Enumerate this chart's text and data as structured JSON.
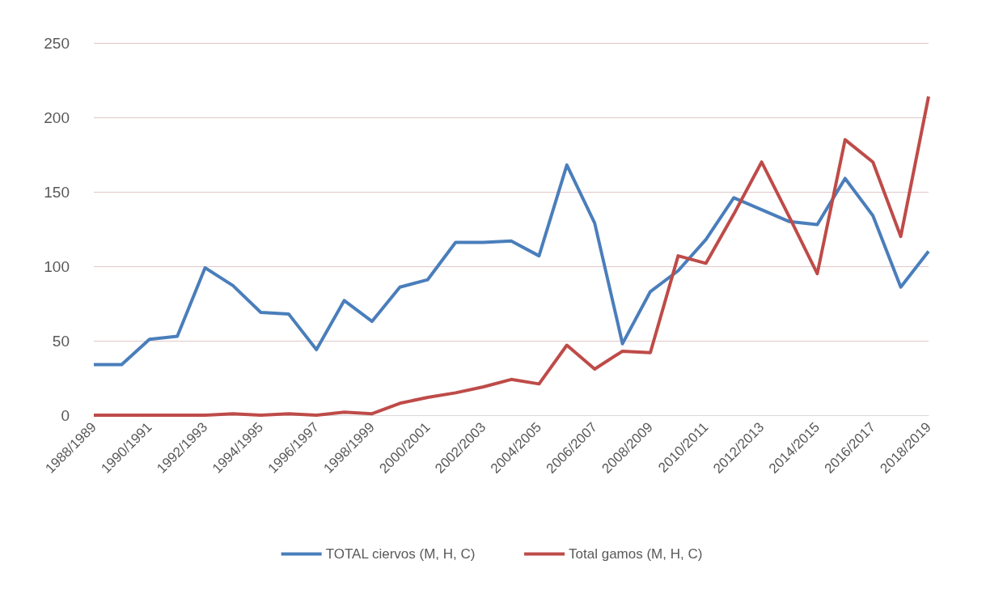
{
  "chart_data": {
    "type": "line",
    "categories": [
      "1988/1989",
      null,
      "1990/1991",
      null,
      "1992/1993",
      null,
      "1994/1995",
      null,
      "1996/1997",
      null,
      "1998/1999",
      null,
      "2000/2001",
      null,
      "2002/2003",
      null,
      "2004/2005",
      null,
      "2006/2007",
      null,
      "2008/2009",
      null,
      "2010/2011",
      null,
      "2012/2013",
      null,
      "2014/2015",
      null,
      "2016/2017",
      null,
      "2018/2019"
    ],
    "series": [
      {
        "name": "TOTAL ciervos (M, H, C)",
        "color": "#4a7ebb",
        "values": [
          34,
          34,
          51,
          53,
          99,
          87,
          69,
          68,
          44,
          77,
          63,
          86,
          91,
          116,
          116,
          117,
          107,
          168,
          129,
          48,
          83,
          97,
          118,
          146,
          138,
          130,
          128,
          159,
          134,
          86,
          110
        ]
      },
      {
        "name": "Total gamos (M, H, C)",
        "color": "#be4b48",
        "values": [
          0,
          0,
          0,
          0,
          0,
          1,
          0,
          1,
          0,
          2,
          1,
          8,
          12,
          15,
          19,
          24,
          21,
          47,
          31,
          43,
          42,
          107,
          102,
          135,
          170,
          133,
          95,
          185,
          170,
          120,
          214
        ]
      }
    ],
    "ylim": [
      0,
      250
    ],
    "yticks": [
      0,
      50,
      100,
      150,
      200,
      250
    ],
    "grid": "y",
    "legend": "bottom",
    "marker": "none",
    "line_style": "solid"
  }
}
